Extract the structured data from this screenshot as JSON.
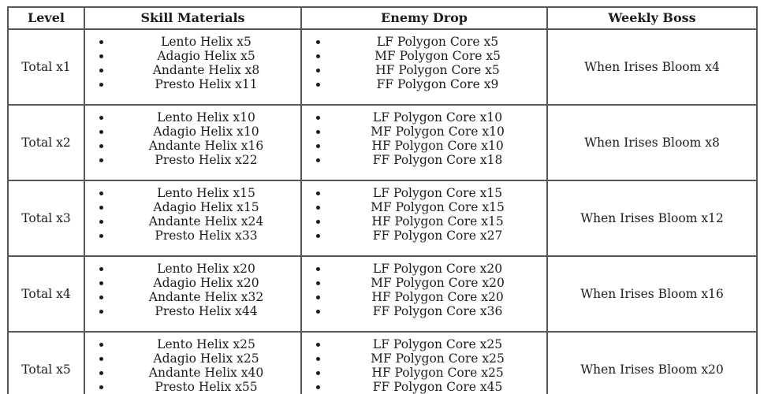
{
  "table": {
    "headers": [
      "Level",
      "Skill Materials",
      "Enemy Drop",
      "Weekly Boss"
    ],
    "rows": [
      {
        "level": "Total x1",
        "skill_materials": [
          "Lento Helix x5",
          "Adagio Helix x5",
          "Andante Helix x8",
          "Presto Helix x11"
        ],
        "enemy_drop": [
          "LF Polygon Core x5",
          "MF Polygon Core x5",
          "HF Polygon Core x5",
          "FF Polygon Core x9"
        ],
        "weekly_boss": "When Irises Bloom x4"
      },
      {
        "level": "Total x2",
        "skill_materials": [
          "Lento Helix x10",
          "Adagio Helix x10",
          "Andante Helix x16",
          "Presto Helix x22"
        ],
        "enemy_drop": [
          "LF Polygon Core x10",
          "MF Polygon Core x10",
          "HF Polygon Core x10",
          "FF Polygon Core x18"
        ],
        "weekly_boss": "When Irises Bloom x8"
      },
      {
        "level": "Total x3",
        "skill_materials": [
          "Lento Helix x15",
          "Adagio Helix x15",
          "Andante Helix x24",
          "Presto Helix x33"
        ],
        "enemy_drop": [
          "LF Polygon Core x15",
          "MF Polygon Core x15",
          "HF Polygon Core x15",
          "FF Polygon Core x27"
        ],
        "weekly_boss": "When Irises Bloom x12"
      },
      {
        "level": "Total x4",
        "skill_materials": [
          "Lento Helix x20",
          "Adagio Helix x20",
          "Andante Helix x32",
          "Presto Helix x44"
        ],
        "enemy_drop": [
          "LF Polygon Core x20",
          "MF Polygon Core x20",
          "HF Polygon Core x20",
          "FF Polygon Core x36"
        ],
        "weekly_boss": "When Irises Bloom x16"
      },
      {
        "level": "Total x5",
        "skill_materials": [
          "Lento Helix x25",
          "Adagio Helix x25",
          "Andante Helix x40",
          "Presto Helix x55"
        ],
        "enemy_drop": [
          "LF Polygon Core x25",
          "MF Polygon Core x25",
          "HF Polygon Core x25",
          "FF Polygon Core x45"
        ],
        "weekly_boss": "When Irises Bloom x20"
      }
    ]
  },
  "colors": {
    "border": "#565656",
    "text": "#1c1c1c",
    "background": "#ffffff"
  }
}
